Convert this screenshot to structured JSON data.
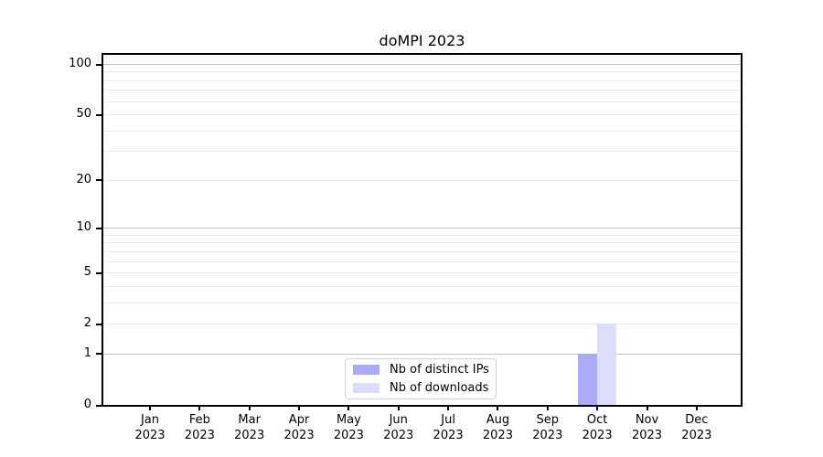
{
  "figure": {
    "title": "doMPI 2023"
  },
  "chart_data": {
    "type": "bar",
    "title": "doMPI 2023",
    "x_categories": [
      "Jan",
      "Feb",
      "Mar",
      "Apr",
      "May",
      "Jun",
      "Jul",
      "Aug",
      "Sep",
      "Oct",
      "Nov",
      "Dec"
    ],
    "x_year": "2023",
    "series": [
      {
        "name": "Nb of distinct IPs",
        "color": "#aaaaf9",
        "values": [
          0,
          0,
          0,
          0,
          0,
          0,
          0,
          0,
          0,
          1,
          0,
          0
        ]
      },
      {
        "name": "Nb of downloads",
        "color": "#dcdcfb",
        "values": [
          0,
          0,
          0,
          0,
          0,
          0,
          0,
          0,
          0,
          2,
          0,
          0
        ]
      }
    ],
    "y_ticks": [
      0,
      1,
      2,
      5,
      10,
      20,
      50,
      100
    ],
    "y_scale": "log1p",
    "y_max": 114,
    "xlabel": "",
    "ylabel": "",
    "grid": "both",
    "legend_position": "lower center"
  },
  "colors": {
    "axis": "#000000",
    "major_grid": "#c3c3c3",
    "minor_grid": "#e9e9e9",
    "legend_border": "#d0d0d0"
  }
}
